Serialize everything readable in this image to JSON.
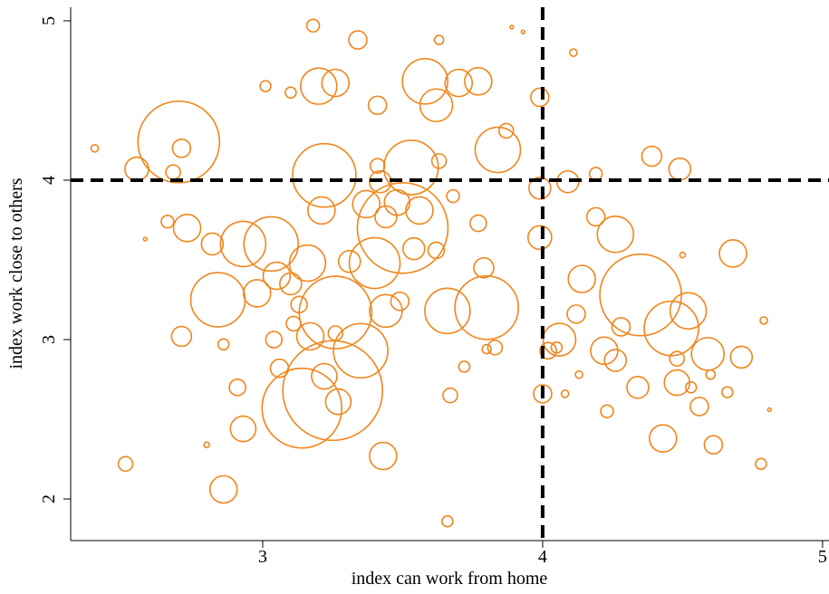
{
  "chart_data": {
    "type": "scatter",
    "xlabel": "index can work from home",
    "ylabel": "index work close to others",
    "xlim": [
      2.314,
      5.023
    ],
    "ylim": [
      1.739,
      5.085
    ],
    "xticks": [
      3,
      4,
      5
    ],
    "yticks": [
      2,
      3,
      4,
      5
    ],
    "vlines": [
      4
    ],
    "hlines": [
      4
    ],
    "color": "#f0861c",
    "filled": false,
    "x": [
      2.7,
      3.25,
      3.14,
      4.35,
      3.5,
      3.8,
      3.26,
      3.35,
      3.03,
      2.84,
      3.58,
      3.53,
      3.2,
      3.22,
      3.84,
      4.46,
      4.26,
      2.93,
      3.4,
      3.16,
      3.66,
      3.44,
      3.62,
      4.59,
      3.77,
      3.34,
      3.18,
      2.86,
      2.93,
      3.43,
      2.51,
      3.66,
      4.43,
      4.61,
      4.78,
      4.68,
      4.71,
      4.49,
      4.39,
      4.09,
      3.99,
      3.99,
      3.99,
      4.0,
      2.55,
      2.71,
      2.71,
      2.73,
      2.82,
      2.66,
      2.68,
      3.01,
      3.1,
      3.41,
      3.26,
      3.7,
      3.63,
      3.89,
      4.11,
      4.19,
      4.19,
      4.14,
      4.12,
      4.06,
      4.22,
      4.26,
      4.28,
      4.34,
      4.48,
      4.48,
      4.52,
      4.53,
      4.56,
      4.6,
      4.23,
      4.05,
      4.08,
      4.13,
      3.83,
      3.72,
      3.8,
      3.77,
      3.79,
      3.67,
      3.68,
      3.87,
      3.63,
      3.42,
      3.37,
      3.21,
      3.05,
      3.1,
      2.98,
      3.17,
      3.22,
      3.27,
      3.06,
      3.04,
      2.91,
      2.86,
      2.8,
      3.26,
      3.49,
      3.54,
      3.62,
      3.56,
      3.44,
      3.41,
      3.48,
      2.4,
      2.58,
      4.02,
      3.93,
      4.81,
      4.79,
      4.66,
      4.5,
      3.31,
      3.13,
      3.11
    ],
    "y": [
      4.24,
      2.68,
      2.57,
      3.28,
      3.7,
      3.2,
      3.17,
      2.93,
      3.6,
      3.25,
      4.62,
      4.08,
      4.59,
      4.03,
      4.19,
      3.07,
      3.66,
      3.6,
      3.48,
      3.48,
      3.18,
      3.18,
      4.47,
      2.91,
      4.62,
      4.88,
      4.97,
      2.06,
      2.44,
      2.27,
      2.22,
      1.86,
      2.38,
      2.34,
      2.22,
      3.54,
      2.89,
      4.07,
      4.15,
      3.99,
      3.95,
      3.64,
      4.52,
      2.66,
      4.07,
      4.2,
      3.02,
      3.7,
      3.6,
      3.74,
      4.05,
      4.59,
      4.55,
      4.47,
      4.61,
      4.61,
      4.88,
      4.96,
      4.8,
      4.04,
      3.77,
      3.38,
      3.16,
      3.0,
      2.93,
      2.87,
      3.08,
      2.7,
      2.73,
      2.88,
      3.18,
      2.7,
      2.58,
      2.78,
      2.55,
      2.95,
      2.66,
      2.78,
      2.95,
      2.83,
      2.94,
      3.73,
      3.45,
      2.65,
      3.9,
      4.31,
      4.12,
      3.99,
      3.85,
      3.81,
      3.4,
      3.35,
      3.29,
      3.02,
      2.77,
      2.61,
      2.82,
      3.0,
      2.7,
      2.97,
      2.34,
      3.04,
      3.24,
      3.57,
      3.56,
      3.81,
      3.77,
      4.09,
      3.86,
      4.2,
      3.63,
      2.93,
      4.93,
      2.56,
      3.12,
      2.67,
      3.53,
      3.49,
      3.22,
      3.1
    ],
    "sizes": [
      225,
      336.1,
      215.1,
      225,
      277.8,
      136.1,
      177.8,
      100,
      100,
      100,
      69.4,
      100,
      44.4,
      136.1,
      69.4,
      100,
      44.4,
      69.4,
      87.1,
      44.4,
      69.4,
      36,
      36,
      36,
      25,
      11.1,
      5.4,
      25,
      21.8,
      25,
      7.1,
      4,
      25,
      11.1,
      4,
      25,
      16,
      16,
      13.4,
      16,
      16,
      18.8,
      11.1,
      11.1,
      18.8,
      11.1,
      13.4,
      25,
      16,
      5.4,
      7.1,
      4,
      4,
      11.1,
      25,
      25,
      2.8,
      0.4,
      1.8,
      5.4,
      11.1,
      25,
      11.1,
      36,
      25,
      16,
      11.1,
      16,
      21.8,
      7.1,
      44.4,
      4,
      11.1,
      2.8,
      5.4,
      4,
      1.8,
      1.8,
      7.1,
      4,
      2.8,
      9,
      13.4,
      7.1,
      5.4,
      7.1,
      7.1,
      16,
      25,
      25,
      25,
      16,
      25,
      25,
      21.8,
      21.8,
      11.1,
      9,
      9,
      4,
      1,
      7.1,
      11.1,
      16,
      9,
      25,
      16,
      7.1,
      21.8,
      1.8,
      0.4,
      9,
      0.4,
      0.4,
      1.8,
      4,
      1,
      16,
      9,
      7.1
    ]
  }
}
